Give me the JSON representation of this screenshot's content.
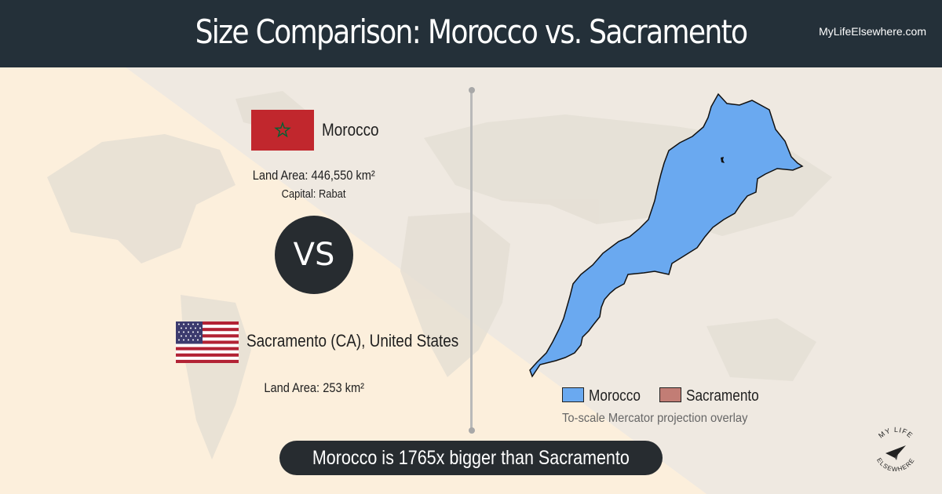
{
  "header": {
    "title": "Size Comparison: Morocco vs. Sacramento",
    "site": "MyLifeElsewhere.com"
  },
  "country1": {
    "name": "Morocco",
    "land_area_label": "Land Area:",
    "land_area_value": "446,550 km²",
    "capital_label": "Capital:",
    "capital_value": "Rabat",
    "flag_color": "#c1272d",
    "star_color": "#006233"
  },
  "vs_label": "VS",
  "country2": {
    "name": "Sacramento (CA), United States",
    "land_area_label": "Land Area:",
    "land_area_value": "253 km²"
  },
  "legend": {
    "items": [
      {
        "label": "Morocco",
        "color": "#6aa9f0"
      },
      {
        "label": "Sacramento",
        "color": "#c27d75"
      }
    ],
    "note": "To-scale Mercator projection overlay"
  },
  "banner": "Morocco is 1765x bigger than Sacramento",
  "logo": {
    "text": "MY LIFE ELSEWHERE",
    "icon": "paper-plane-icon"
  }
}
